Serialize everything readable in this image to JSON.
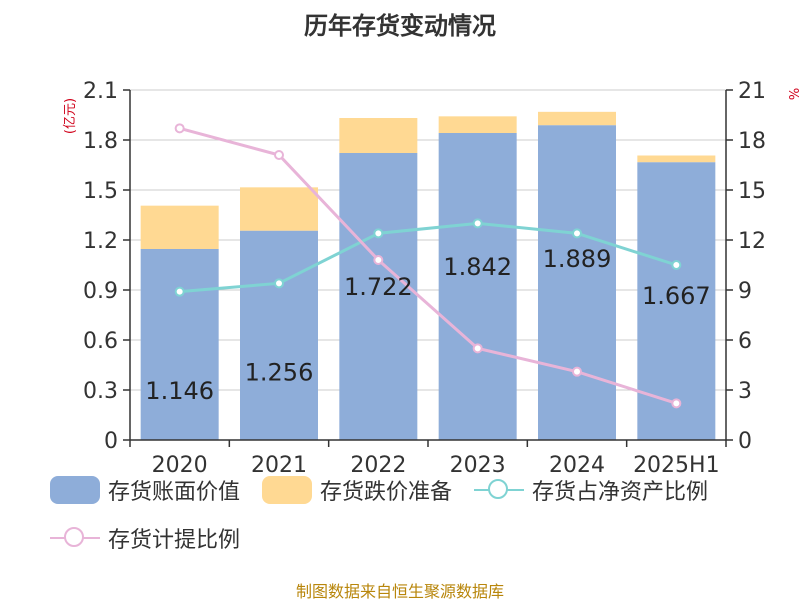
{
  "title": "历年存货变动情况",
  "y_left_unit": "(亿元)",
  "y_right_unit": "%",
  "source": "制图数据来自恒生聚源数据库",
  "colors": {
    "book_value": "#8eadd9",
    "impairment": "#ffd993",
    "net_asset_ratio": "#7fd3d3",
    "provision_ratio": "#e8b4d8",
    "unit_red": "#d0021b",
    "axis": "#333333",
    "grid": "#cccccc"
  },
  "legend": [
    {
      "label": "存货账面价值",
      "kind": "bar",
      "color": "#8eadd9"
    },
    {
      "label": "存货跌价准备",
      "kind": "bar",
      "color": "#ffd993"
    },
    {
      "label": "存货占净资产比例",
      "kind": "line",
      "color": "#7fd3d3"
    },
    {
      "label": "存货计提比例",
      "kind": "line",
      "color": "#e8b4d8"
    }
  ],
  "chart_data": {
    "type": "bar",
    "categories": [
      "2020",
      "2021",
      "2022",
      "2023",
      "2024",
      "2025H1"
    ],
    "ylim_left": [
      0,
      2.1
    ],
    "yticks_left": [
      "0",
      "0.3",
      "0.6",
      "0.9",
      "1.2",
      "1.5",
      "1.8",
      "2.1"
    ],
    "ylim_right": [
      0,
      21
    ],
    "yticks_right": [
      "0",
      "3",
      "6",
      "9",
      "12",
      "15",
      "18",
      "21"
    ],
    "series": [
      {
        "name": "存货账面价值",
        "type": "bar",
        "stack": "total",
        "axis": "left",
        "values": [
          1.146,
          1.256,
          1.722,
          1.842,
          1.889,
          1.667
        ],
        "labels": [
          "1.146",
          "1.256",
          "1.722",
          "1.842",
          "1.889",
          "1.667"
        ]
      },
      {
        "name": "存货跌价准备",
        "type": "bar",
        "stack": "total",
        "axis": "left",
        "values": [
          0.26,
          0.26,
          0.21,
          0.1,
          0.08,
          0.04
        ]
      },
      {
        "name": "存货占净资产比例",
        "type": "line",
        "axis": "right",
        "values": [
          8.9,
          9.4,
          12.4,
          13.0,
          12.4,
          10.5
        ]
      },
      {
        "name": "存货计提比例",
        "type": "line",
        "axis": "right",
        "values": [
          18.7,
          17.1,
          10.8,
          5.5,
          4.1,
          2.2
        ]
      }
    ],
    "grid": true,
    "legend_position": "bottom"
  }
}
